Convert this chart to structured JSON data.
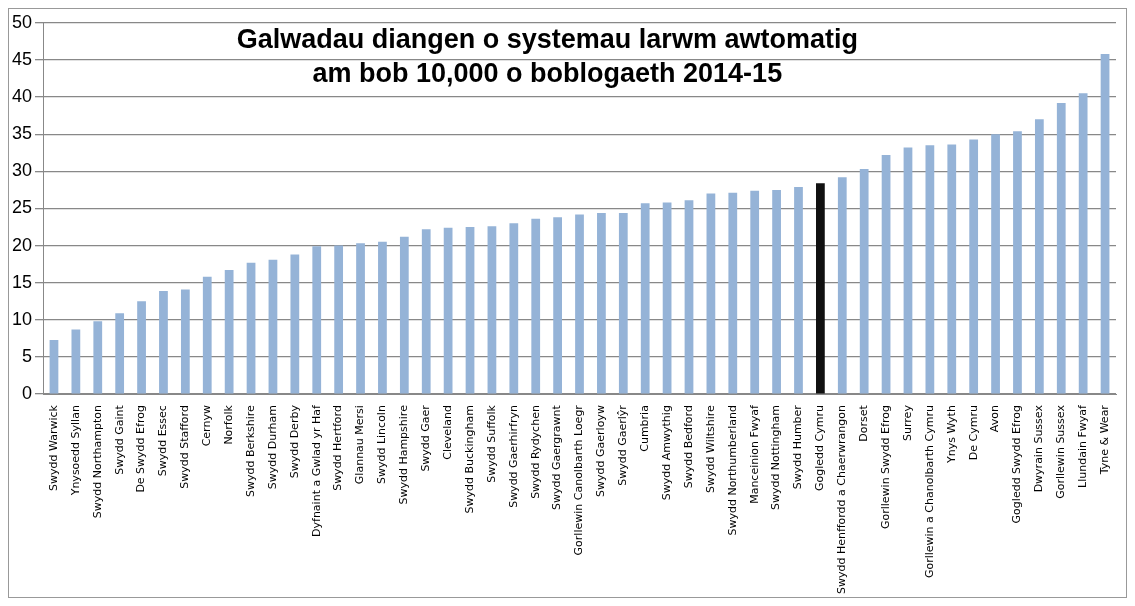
{
  "chart_data": {
    "type": "bar",
    "title": "Galwadau diangen o systemau larwm awtomatig\nam bob 10,000 o boblogaeth 2014-15",
    "categories": [
      "Swydd Warwick",
      "Ynysoedd Syllan",
      "Swydd Northampton",
      "Swydd Gaint",
      "De Swydd Efrog",
      "Swydd Essec",
      "Swydd Stafford",
      "Cernyw",
      "Norfolk",
      "Swydd Berkshire",
      "Swydd Durham",
      "Swydd Derby",
      "Dyfnaint a Gwlad yr Haf",
      "Swydd Hertford",
      "Glannau Mersi",
      "Swydd Lincoln",
      "Swydd Hampshire",
      "Swydd Gaer",
      "Cleveland",
      "Swydd Buckingham",
      "Swydd Suffolk",
      "Swydd Gaerhirfryn",
      "Swydd Rydychen",
      "Swydd Gaergrawnt",
      "Gorllewin Canolbarth Loegr",
      "Swydd Gaerloyw",
      "Swydd Gaerlŷr",
      "Cumbria",
      "Swydd Amwythig",
      "Swydd Bedford",
      "Swydd Wiltshire",
      "Swydd Northumberland",
      "Manceinion Fwyaf",
      "Swydd Nottingham",
      "Swydd Humber",
      "Gogledd Cymru",
      "Swydd Henffordd a Chaerwrangon",
      "Dorset",
      "Gorllewin Swydd Efrog",
      "Surrey",
      "Gorllewin a Chanolbarth Cymru",
      "Ynys Wyth",
      "De Cymru",
      "Avon",
      "Gogledd Swydd Efrog",
      "Dwyrain Sussex",
      "Gorllewin Sussex",
      "Llundain Fwyaf",
      "Tyne & Wear"
    ],
    "values": [
      7.3,
      8.7,
      9.8,
      10.9,
      12.5,
      13.9,
      14.1,
      15.8,
      16.7,
      17.7,
      18.1,
      18.8,
      19.9,
      20.0,
      20.3,
      20.5,
      21.2,
      22.2,
      22.4,
      22.5,
      22.6,
      23.0,
      23.6,
      23.8,
      24.2,
      24.4,
      24.4,
      25.7,
      25.8,
      26.1,
      27.0,
      27.1,
      27.4,
      27.5,
      27.9,
      28.4,
      29.2,
      30.3,
      32.2,
      33.2,
      33.5,
      33.6,
      34.3,
      35.0,
      35.4,
      37.0,
      39.2,
      40.5,
      45.8
    ],
    "colors": [
      "#95b3d7",
      "#95b3d7",
      "#95b3d7",
      "#95b3d7",
      "#95b3d7",
      "#95b3d7",
      "#95b3d7",
      "#95b3d7",
      "#95b3d7",
      "#95b3d7",
      "#95b3d7",
      "#95b3d7",
      "#95b3d7",
      "#95b3d7",
      "#95b3d7",
      "#95b3d7",
      "#95b3d7",
      "#95b3d7",
      "#95b3d7",
      "#95b3d7",
      "#95b3d7",
      "#95b3d7",
      "#95b3d7",
      "#95b3d7",
      "#95b3d7",
      "#95b3d7",
      "#95b3d7",
      "#95b3d7",
      "#95b3d7",
      "#95b3d7",
      "#95b3d7",
      "#95b3d7",
      "#95b3d7",
      "#95b3d7",
      "#95b3d7",
      "#111111",
      "#95b3d7",
      "#95b3d7",
      "#95b3d7",
      "#95b3d7",
      "#95b3d7",
      "#95b3d7",
      "#95b3d7",
      "#95b3d7",
      "#95b3d7",
      "#95b3d7",
      "#95b3d7",
      "#95b3d7",
      "#95b3d7"
    ],
    "ylim": [
      0,
      50
    ],
    "yticks": [
      0,
      5,
      10,
      15,
      20,
      25,
      30,
      35,
      40,
      45,
      50
    ],
    "grid": "y",
    "legend": false
  }
}
